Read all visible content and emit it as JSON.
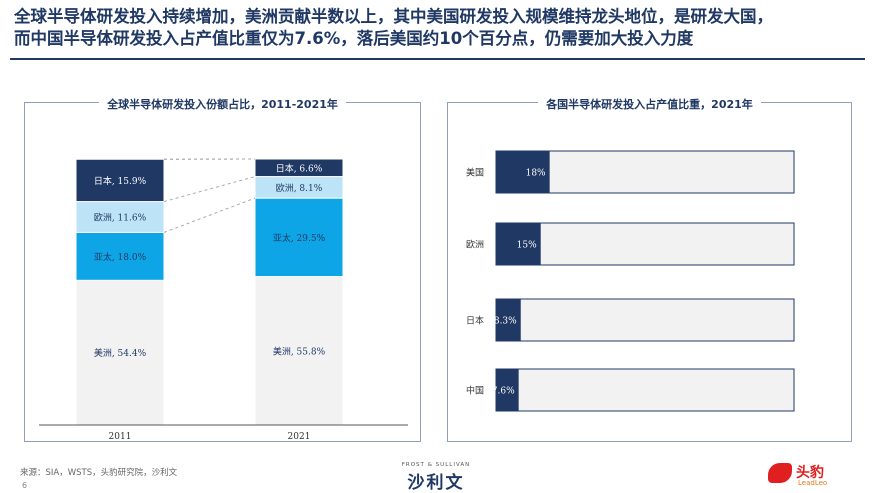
{
  "headline": {
    "line1": "全球半导体研发投入持续增加，美洲贡献半数以上，其中美国研发投入规模维持龙头地位，是研发大国，",
    "line2": "而中国半导体研发投入占产值比重仅为7.6%，落后美国约10个百分点，仍需要加大投入力度"
  },
  "footer": {
    "source": "来源：SIA，WSTS，头豹研究院，沙利文",
    "page": "6",
    "frost": "FROST & SULLIVAN",
    "brand": "沙利文",
    "logo_cn": "头豹",
    "logo_en": "LeadLeo"
  },
  "colors": {
    "navy": "#1f3864",
    "light_blue": "#bde4f6",
    "bright_blue": "#0ea5e6",
    "light_gray": "#f2f2f2",
    "bar_navy": "#1f3864"
  },
  "chart_data": [
    {
      "type": "bar",
      "stacked": true,
      "normalized": true,
      "title": "全球半导体研发投入份额占比，2011-2021年",
      "categories": [
        "2011",
        "2021"
      ],
      "series": [
        {
          "name": "美洲",
          "values": [
            54.4,
            55.8
          ],
          "labels": [
            "美洲, 54.4%",
            "美洲, 55.8%"
          ],
          "color": "#f2f2f2"
        },
        {
          "name": "亚太",
          "values": [
            18.0,
            29.5
          ],
          "labels": [
            "亚太, 18.0%",
            "亚太, 29.5%"
          ],
          "color": "#0ea5e6"
        },
        {
          "name": "欧洲",
          "values": [
            11.6,
            8.1
          ],
          "labels": [
            "欧洲, 11.6%",
            "欧洲, 8.1%"
          ],
          "color": "#bde4f6"
        },
        {
          "name": "日本",
          "values": [
            15.9,
            6.6
          ],
          "labels": [
            "日本, 15.9%",
            "日本, 6.6%"
          ],
          "color": "#1f3864"
        }
      ],
      "ylim": [
        0,
        100
      ],
      "legend": "none"
    },
    {
      "type": "bar",
      "orientation": "horizontal",
      "title": "各国半导体研发投入占产值比重，2021年",
      "categories": [
        "美国",
        "欧洲",
        "日本",
        "中国"
      ],
      "values": [
        18,
        15,
        8.3,
        7.6
      ],
      "labels": [
        "18%",
        "15%",
        "8.3%",
        "7.6%"
      ],
      "xlim": [
        0,
        100
      ],
      "legend": "none"
    }
  ]
}
